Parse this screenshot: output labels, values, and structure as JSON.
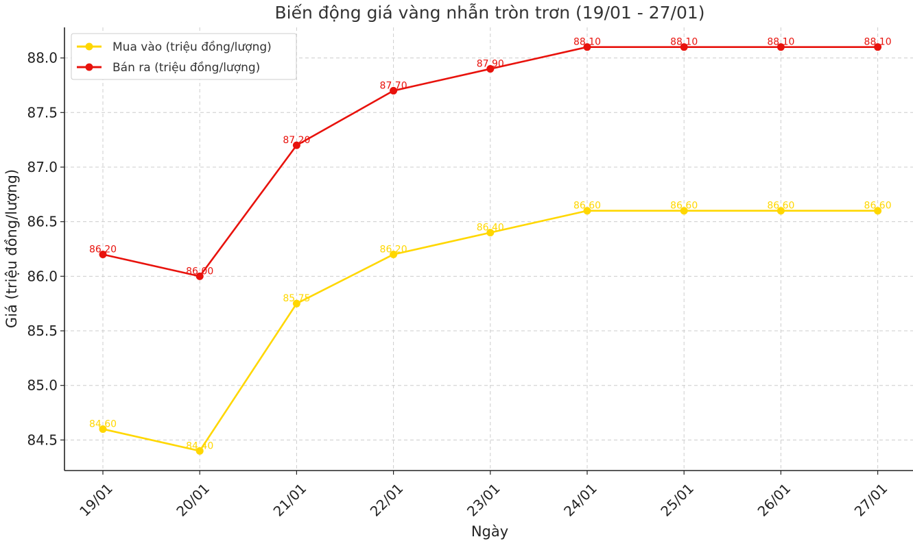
{
  "chart_data": {
    "type": "line",
    "title": "Biến động giá vàng nhẫn tròn trơn (19/01 - 27/01)",
    "xlabel": "Ngày",
    "ylabel": "Giá (triệu đồng/lượng)",
    "categories": [
      "19/01",
      "20/01",
      "21/01",
      "22/01",
      "23/01",
      "24/01",
      "25/01",
      "26/01",
      "27/01"
    ],
    "ylim": [
      84.22,
      88.28
    ],
    "yticks": [
      "84.5",
      "85.0",
      "85.5",
      "86.0",
      "86.5",
      "87.0",
      "87.5",
      "88.0"
    ],
    "grid": true,
    "legend_position": "top-left",
    "series": [
      {
        "name": "Mua vào (triệu đồng/lượng)",
        "color": "#FFD700",
        "values": [
          84.6,
          84.4,
          85.75,
          86.2,
          86.4,
          86.6,
          86.6,
          86.6,
          86.6
        ],
        "labels": [
          "84.60",
          "84.40",
          "85.75",
          "86.20",
          "86.40",
          "86.60",
          "86.60",
          "86.60",
          "86.60"
        ]
      },
      {
        "name": "Bán ra (triệu đồng/lượng)",
        "color": "#E8120C",
        "values": [
          86.2,
          86.0,
          87.2,
          87.7,
          87.9,
          88.1,
          88.1,
          88.1,
          88.1
        ],
        "labels": [
          "86.20",
          "86.00",
          "87.20",
          "87.70",
          "87.90",
          "88.10",
          "88.10",
          "88.10",
          "88.10"
        ]
      }
    ]
  }
}
